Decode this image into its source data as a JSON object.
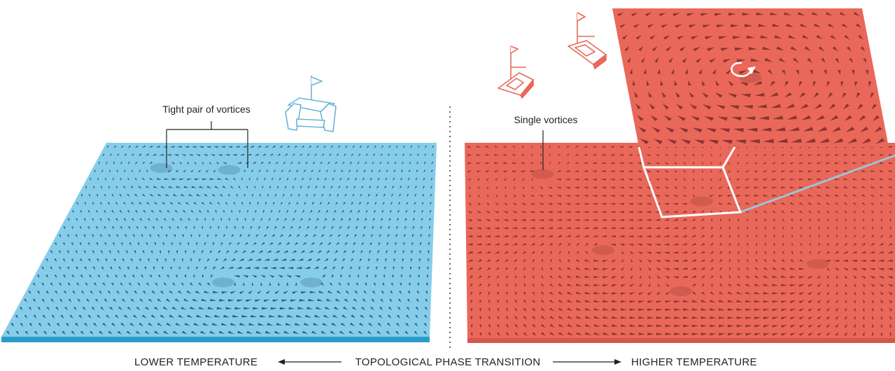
{
  "colors": {
    "cold_surface": "#86CDEB",
    "cold_edge": "#2E9CCB",
    "hot_surface": "#E9685A",
    "hot_edge": "#D4564A",
    "arrow_cold": "#2E5E77",
    "arrow_hot": "#8A3530",
    "zoom_frame": "#FFFFFF",
    "guide_line": "#9EC3D6",
    "divider": "#333333"
  },
  "labels": {
    "cold_callout": "Tight pair of vortices",
    "hot_callout": "Single vortices",
    "axis_left": "LOWER TEMPERATURE",
    "axis_center": "TOPOLOGICAL PHASE TRANSITION",
    "axis_right": "HIGHER TEMPERATURE"
  },
  "icons": {
    "cold_boat": "catamaran-icon",
    "hot_boats": [
      "sailboat-icon",
      "sailboat-icon"
    ],
    "rotation": "rotation-arrow-icon"
  },
  "vortex_field": {
    "cold": [
      {
        "u": 0.2,
        "v": 0.13,
        "w": 1
      },
      {
        "u": 0.4,
        "v": 0.14,
        "w": -1
      },
      {
        "u": 0.48,
        "v": 0.72,
        "w": 1
      },
      {
        "u": 0.7,
        "v": 0.72,
        "w": -1
      }
    ],
    "hot": [
      {
        "u": 0.18,
        "v": 0.16,
        "w": 1
      },
      {
        "u": 0.55,
        "v": 0.3,
        "w": 1
      },
      {
        "u": 0.32,
        "v": 0.55,
        "w": 1
      },
      {
        "u": 0.5,
        "v": 0.76,
        "w": -1
      },
      {
        "u": 0.82,
        "v": 0.62,
        "w": 1
      }
    ],
    "zoom_vortex_winding": 1
  }
}
